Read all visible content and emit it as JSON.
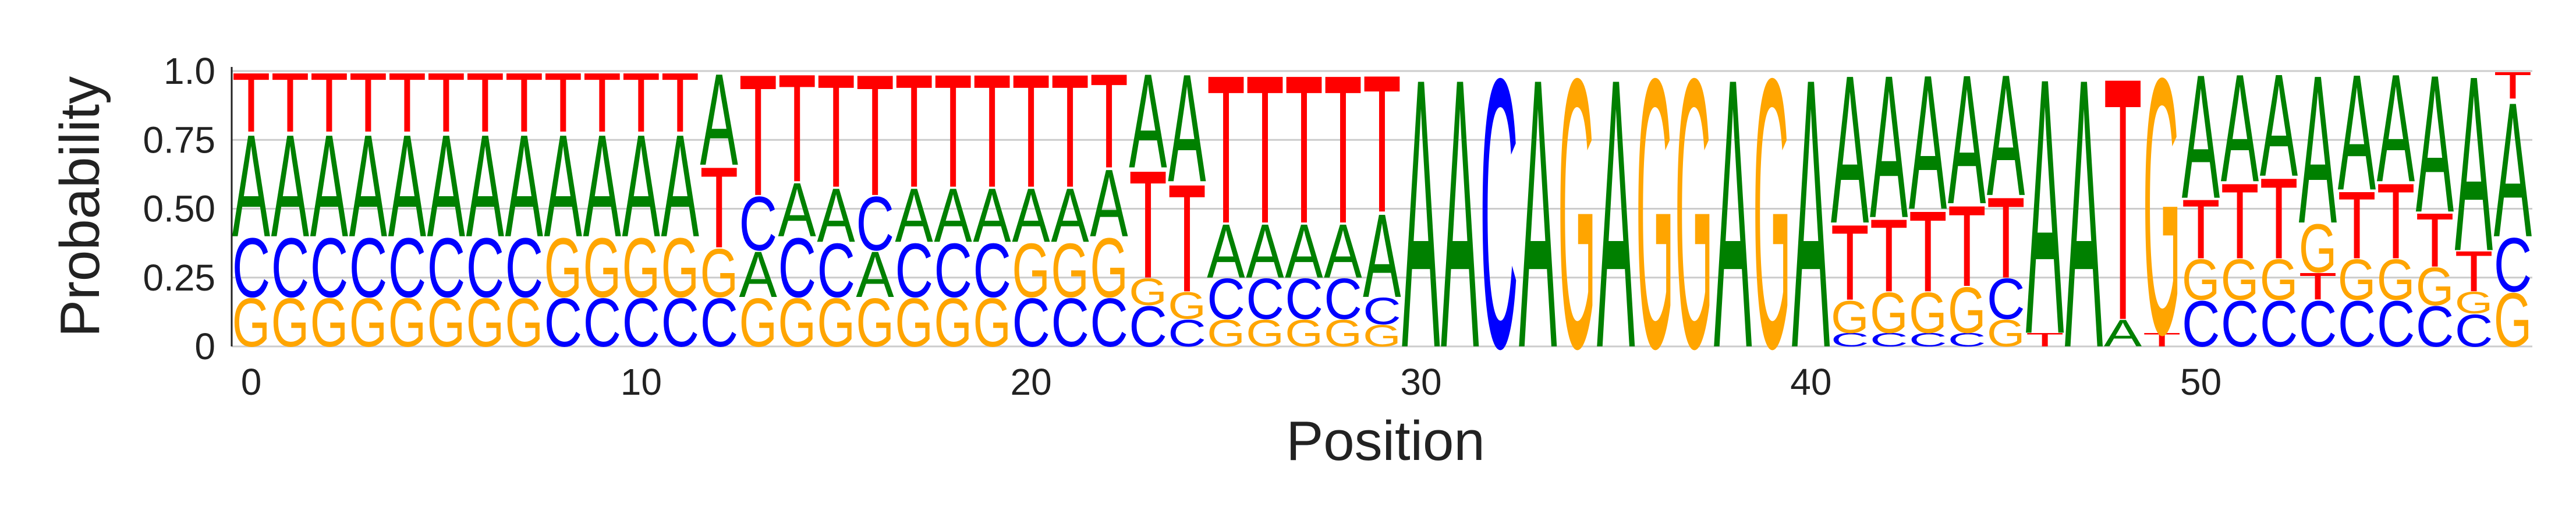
{
  "chart_data": {
    "type": "sequence-logo",
    "xlabel": "Position",
    "ylabel": "Probability",
    "ylim": [
      0,
      1
    ],
    "xlim": [
      0,
      58
    ],
    "x_ticks": [
      0,
      10,
      20,
      30,
      40,
      50
    ],
    "y_ticks": [
      0,
      0.25,
      0.5,
      0.75,
      1
    ],
    "y_tick_labels": [
      "0",
      "0.25",
      "0.50",
      "0.75",
      "1.0"
    ],
    "grid": "horizontal",
    "colors": {
      "A": "#008000",
      "C": "#0000ff",
      "G": "#ffa500",
      "T": "#ff0000"
    },
    "positions": [
      {
        "pos": 0,
        "G": 0.18,
        "C": 0.22,
        "A": 0.38,
        "T": 0.22
      },
      {
        "pos": 1,
        "G": 0.18,
        "C": 0.22,
        "A": 0.38,
        "T": 0.22
      },
      {
        "pos": 2,
        "G": 0.18,
        "C": 0.22,
        "A": 0.38,
        "T": 0.22
      },
      {
        "pos": 3,
        "G": 0.18,
        "C": 0.22,
        "A": 0.38,
        "T": 0.22
      },
      {
        "pos": 4,
        "G": 0.18,
        "C": 0.22,
        "A": 0.38,
        "T": 0.22
      },
      {
        "pos": 5,
        "G": 0.18,
        "C": 0.22,
        "A": 0.38,
        "T": 0.22
      },
      {
        "pos": 6,
        "G": 0.18,
        "C": 0.22,
        "A": 0.38,
        "T": 0.22
      },
      {
        "pos": 7,
        "G": 0.18,
        "C": 0.22,
        "A": 0.38,
        "T": 0.22
      },
      {
        "pos": 8,
        "C": 0.18,
        "G": 0.22,
        "A": 0.38,
        "T": 0.22
      },
      {
        "pos": 9,
        "C": 0.18,
        "G": 0.22,
        "A": 0.38,
        "T": 0.22
      },
      {
        "pos": 10,
        "C": 0.18,
        "G": 0.22,
        "A": 0.38,
        "T": 0.22
      },
      {
        "pos": 11,
        "C": 0.18,
        "G": 0.22,
        "A": 0.38,
        "T": 0.22
      },
      {
        "pos": 12,
        "C": 0.18,
        "G": 0.18,
        "T": 0.3,
        "A": 0.34
      },
      {
        "pos": 13,
        "G": 0.18,
        "A": 0.17,
        "C": 0.2,
        "T": 0.45
      },
      {
        "pos": 14,
        "G": 0.18,
        "C": 0.22,
        "A": 0.2,
        "T": 0.4
      },
      {
        "pos": 15,
        "G": 0.18,
        "C": 0.2,
        "A": 0.2,
        "T": 0.42
      },
      {
        "pos": 16,
        "G": 0.18,
        "A": 0.17,
        "C": 0.2,
        "T": 0.45
      },
      {
        "pos": 17,
        "G": 0.18,
        "C": 0.2,
        "A": 0.2,
        "T": 0.42
      },
      {
        "pos": 18,
        "G": 0.18,
        "C": 0.2,
        "A": 0.2,
        "T": 0.42
      },
      {
        "pos": 19,
        "G": 0.18,
        "C": 0.2,
        "A": 0.2,
        "T": 0.42
      },
      {
        "pos": 20,
        "C": 0.18,
        "G": 0.2,
        "A": 0.2,
        "T": 0.42
      },
      {
        "pos": 21,
        "C": 0.18,
        "G": 0.2,
        "A": 0.2,
        "T": 0.42
      },
      {
        "pos": 22,
        "C": 0.18,
        "G": 0.22,
        "A": 0.25,
        "T": 0.35
      },
      {
        "pos": 23,
        "C": 0.15,
        "G": 0.1,
        "T": 0.4,
        "A": 0.35
      },
      {
        "pos": 24,
        "C": 0.1,
        "G": 0.1,
        "T": 0.4,
        "A": 0.4
      },
      {
        "pos": 25,
        "G": 0.1,
        "C": 0.15,
        "A": 0.2,
        "T": 0.55
      },
      {
        "pos": 26,
        "G": 0.1,
        "C": 0.15,
        "A": 0.2,
        "T": 0.55
      },
      {
        "pos": 27,
        "G": 0.1,
        "C": 0.15,
        "A": 0.2,
        "T": 0.55
      },
      {
        "pos": 28,
        "G": 0.1,
        "C": 0.15,
        "A": 0.2,
        "T": 0.55
      },
      {
        "pos": 29,
        "G": 0.08,
        "C": 0.1,
        "A": 0.31,
        "T": 0.51
      },
      {
        "pos": 30,
        "A": 1.0
      },
      {
        "pos": 31,
        "A": 1.0
      },
      {
        "pos": 32,
        "C": 1.0
      },
      {
        "pos": 33,
        "A": 1.0
      },
      {
        "pos": 34,
        "G": 1.0
      },
      {
        "pos": 35,
        "A": 1.0
      },
      {
        "pos": 36,
        "G": 1.0
      },
      {
        "pos": 37,
        "G": 1.0
      },
      {
        "pos": 38,
        "A": 1.0
      },
      {
        "pos": 39,
        "G": 1.0
      },
      {
        "pos": 40,
        "A": 1.0
      },
      {
        "pos": 41,
        "C": 0.05,
        "G": 0.12,
        "T": 0.28,
        "A": 0.55
      },
      {
        "pos": 42,
        "C": 0.05,
        "G": 0.15,
        "T": 0.27,
        "A": 0.53
      },
      {
        "pos": 43,
        "C": 0.05,
        "G": 0.15,
        "T": 0.3,
        "A": 0.5
      },
      {
        "pos": 44,
        "C": 0.05,
        "G": 0.17,
        "T": 0.3,
        "A": 0.48
      },
      {
        "pos": 45,
        "G": 0.1,
        "C": 0.15,
        "T": 0.3,
        "A": 0.45
      },
      {
        "pos": 46,
        "T": 0.05,
        "A": 0.95
      },
      {
        "pos": 47,
        "A": 1.0
      },
      {
        "pos": 48,
        "A": 0.1,
        "T": 0.9
      },
      {
        "pos": 49,
        "T": 0.05,
        "G": 0.95
      },
      {
        "pos": 50,
        "C": 0.17,
        "G": 0.15,
        "T": 0.22,
        "A": 0.46
      },
      {
        "pos": 51,
        "C": 0.17,
        "G": 0.15,
        "T": 0.28,
        "A": 0.4
      },
      {
        "pos": 52,
        "C": 0.17,
        "G": 0.15,
        "T": 0.3,
        "A": 0.38
      },
      {
        "pos": 53,
        "C": 0.17,
        "T": 0.1,
        "G": 0.18,
        "A": 0.55
      },
      {
        "pos": 54,
        "C": 0.17,
        "G": 0.15,
        "T": 0.25,
        "A": 0.43
      },
      {
        "pos": 55,
        "C": 0.17,
        "G": 0.15,
        "T": 0.28,
        "A": 0.4
      },
      {
        "pos": 56,
        "C": 0.15,
        "G": 0.14,
        "T": 0.2,
        "A": 0.51
      },
      {
        "pos": 57,
        "C": 0.12,
        "G": 0.08,
        "T": 0.15,
        "A": 0.65
      },
      {
        "pos": 58,
        "G": 0.2,
        "C": 0.2,
        "A": 0.5,
        "T": 0.1
      }
    ]
  }
}
